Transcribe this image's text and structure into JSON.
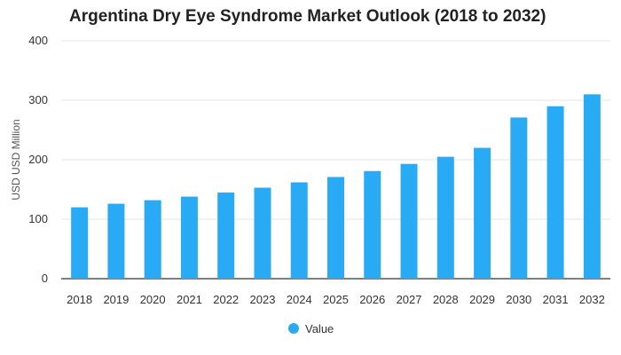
{
  "chart_data": {
    "type": "bar",
    "title": "Argentina Dry Eye Syndrome Market Outlook (2018 to 2032)",
    "xlabel": "",
    "ylabel": "USD USD Million",
    "categories": [
      "2018",
      "2019",
      "2020",
      "2021",
      "2022",
      "2023",
      "2024",
      "2025",
      "2026",
      "2027",
      "2028",
      "2029",
      "2030",
      "2031",
      "2032"
    ],
    "series": [
      {
        "name": "Value",
        "values": [
          120,
          126,
          132,
          138,
          145,
          153,
          162,
          171,
          181,
          193,
          205,
          220,
          271,
          290,
          310
        ]
      }
    ],
    "ylim": [
      0,
      400
    ],
    "yticks": [
      0,
      100,
      200,
      300,
      400
    ],
    "grid": true,
    "legend": "bottom-center",
    "colors": {
      "bar": "#29aaf5",
      "grid": "#e6e6e6",
      "axis": "#333333"
    }
  }
}
